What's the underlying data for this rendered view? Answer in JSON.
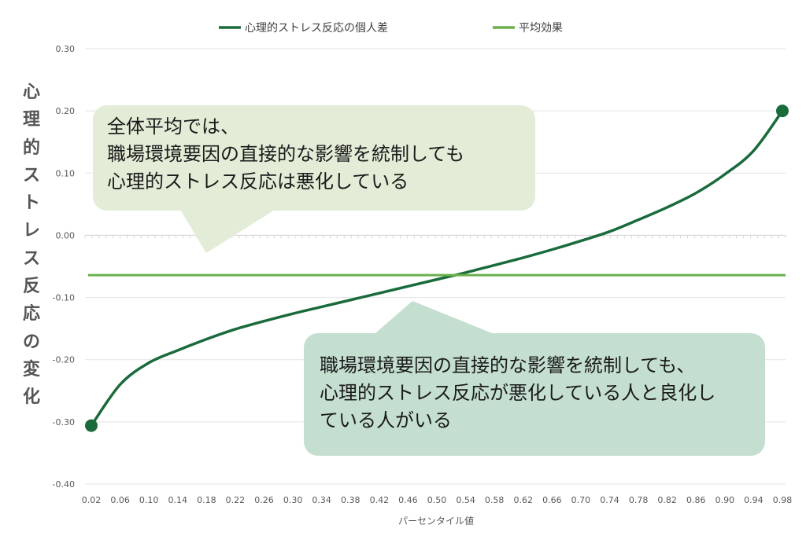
{
  "chart_data": {
    "type": "line",
    "xlabel": "パーセンタイル値",
    "ylabel": "心理的ストレス反応の変化",
    "x": [
      0.02,
      0.06,
      0.1,
      0.14,
      0.18,
      0.22,
      0.26,
      0.3,
      0.34,
      0.38,
      0.42,
      0.46,
      0.5,
      0.54,
      0.58,
      0.62,
      0.66,
      0.7,
      0.74,
      0.78,
      0.82,
      0.86,
      0.9,
      0.94,
      0.98
    ],
    "xticks": [
      "0.02",
      "0.06",
      "0.10",
      "0.14",
      "0.18",
      "0.22",
      "0.26",
      "0.30",
      "0.34",
      "0.38",
      "0.42",
      "0.46",
      "0.50",
      "0.54",
      "0.58",
      "0.62",
      "0.66",
      "0.70",
      "0.74",
      "0.78",
      "0.82",
      "0.86",
      "0.90",
      "0.94",
      "0.98"
    ],
    "yticks": [
      "0.30",
      "0.20",
      "0.10",
      "0.00",
      "-0.10",
      "-0.20",
      "-0.30",
      "-0.40"
    ],
    "ylim": [
      -0.4,
      0.3
    ],
    "grid": true,
    "legend_position": "top",
    "series": [
      {
        "name": "心理的ストレス反応の個人差",
        "color": "#1a6b3c",
        "values": [
          -0.306,
          -0.24,
          -0.205,
          -0.185,
          -0.167,
          -0.151,
          -0.138,
          -0.126,
          -0.115,
          -0.104,
          -0.093,
          -0.082,
          -0.071,
          -0.06,
          -0.048,
          -0.036,
          -0.023,
          -0.009,
          0.006,
          0.025,
          0.045,
          0.068,
          0.098,
          0.136,
          0.2
        ]
      },
      {
        "name": "平均効果",
        "color": "#6ab04c",
        "values": [
          -0.064,
          -0.064,
          -0.064,
          -0.064,
          -0.064,
          -0.064,
          -0.064,
          -0.064,
          -0.064,
          -0.064,
          -0.064,
          -0.064,
          -0.064,
          -0.064,
          -0.064,
          -0.064,
          -0.064,
          -0.064,
          -0.064,
          -0.064,
          -0.064,
          -0.064,
          -0.064,
          -0.064,
          -0.064
        ]
      }
    ]
  },
  "ylabel_chars": [
    "心",
    "理",
    "的",
    "ス",
    "ト",
    "レ",
    "ス",
    "反",
    "応",
    "の",
    "変",
    "化"
  ],
  "callouts": {
    "top": [
      "全体平均では、",
      "職場環境要因の直接的な影響を統制しても",
      "心理的ストレス反応は悪化している"
    ],
    "bottom": [
      "職場環境要因の直接的な影響を統制しても、",
      "心理的ストレス反応が悪化している人と良化し",
      "ている人がいる"
    ]
  }
}
